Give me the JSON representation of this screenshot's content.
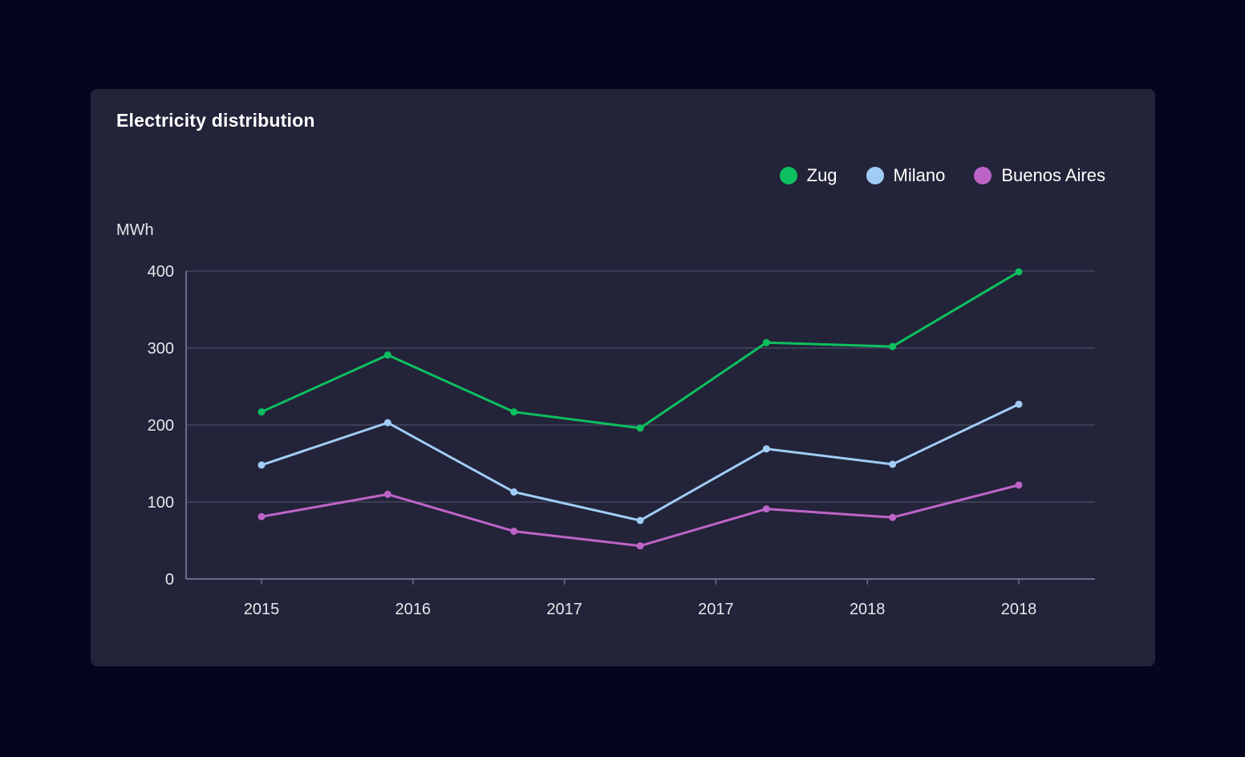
{
  "card": {
    "title": "Electricity distribution"
  },
  "chart_data": {
    "type": "line",
    "title": "Electricity distribution",
    "xlabel": "",
    "ylabel": "MWh",
    "ylim": [
      0,
      400
    ],
    "y_ticks": [
      0,
      100,
      200,
      300,
      400
    ],
    "x_tick_labels": [
      "2015",
      "2016",
      "2017",
      "2017",
      "2018",
      "2018"
    ],
    "grid": true,
    "legend_position": "top-right",
    "marker": "circle",
    "series": [
      {
        "name": "Zug",
        "color": "#0DC05F",
        "values": [
          217,
          291,
          217,
          196,
          307,
          302,
          399
        ]
      },
      {
        "name": "Milano",
        "color": "#A0CDF5",
        "values": [
          148,
          203,
          113,
          76,
          169,
          149,
          227
        ]
      },
      {
        "name": "Buenos Aires",
        "color": "#BE64C8",
        "values": [
          81,
          110,
          62,
          43,
          91,
          80,
          122
        ]
      }
    ]
  },
  "colors": {
    "page_bg": "#03061C",
    "card_bg": "#232339",
    "gridline": "#4C4F68",
    "axis": "#6A6D86",
    "tick_text": "#E6E6EB",
    "title_text": "#FFFFFF"
  }
}
